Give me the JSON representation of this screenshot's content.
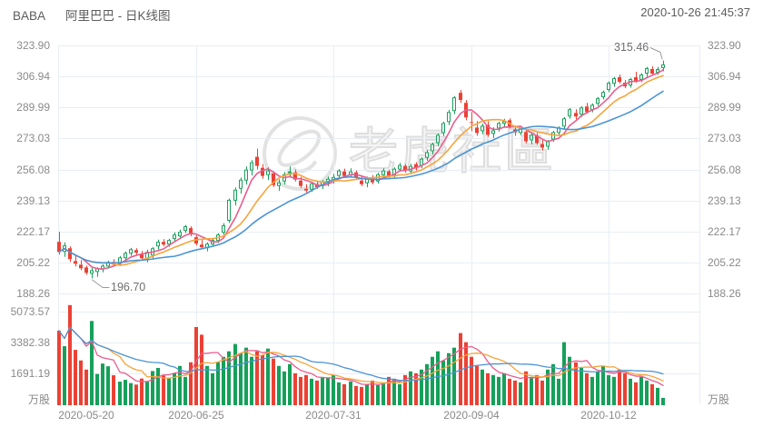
{
  "header": {
    "symbol": "BABA",
    "title": "阿里巴巴 - 日K线图",
    "timestamp": "2020-10-26 21:45:37"
  },
  "watermark": {
    "text": "老虎社區"
  },
  "colors": {
    "up": "#16a05a",
    "up_fill": "#ffffff",
    "down": "#eb4135",
    "ma_fast": "#e85d8e",
    "ma_mid": "#f7a43c",
    "ma_slow": "#4b94d5",
    "grid": "#e8eef5",
    "axis_text": "#8a8a8a",
    "annotation_line": "#9a9a9a",
    "watermark_gray": "#e2e2e2"
  },
  "chart_data": {
    "type": "candlestick",
    "title": "BABA 阿里巴巴 - 日K线图",
    "price_axis": {
      "ticks": [
        "323.90",
        "306.94",
        "289.99",
        "273.03",
        "256.08",
        "239.13",
        "222.17",
        "205.22",
        "188.26"
      ],
      "max": 323.9,
      "min": 188.26
    },
    "volume_axis": {
      "ticks": [
        "5073.57",
        "3382.38",
        "1691.19"
      ],
      "tick_step": 1691.19,
      "unit": "万股"
    },
    "x_ticks": [
      {
        "label": "2020-05-20",
        "index": 0
      },
      {
        "label": "2020-06-25",
        "index": 25
      },
      {
        "label": "2020-07-31",
        "index": 50
      },
      {
        "label": "2020-09-04",
        "index": 75
      },
      {
        "label": "2020-10-12",
        "index": 100
      }
    ],
    "annotations": [
      {
        "text": "196.70",
        "index": 6,
        "anchor": "low"
      },
      {
        "text": "315.46",
        "index": 110,
        "anchor": "high"
      }
    ],
    "ma_periods": [
      5,
      10,
      20
    ],
    "legend": "none",
    "grid": true,
    "columns": [
      "date",
      "open",
      "high",
      "low",
      "close",
      "volume_wan"
    ],
    "candles": [
      [
        "2020-05-20",
        216.5,
        222.0,
        209.5,
        211.0,
        4030
      ],
      [
        "2020-05-21",
        211.0,
        216.0,
        208.5,
        214.5,
        3180
      ],
      [
        "2020-05-22",
        213.0,
        214.0,
        205.5,
        207.0,
        5430
      ],
      [
        "2020-05-26",
        206.0,
        209.5,
        203.0,
        204.5,
        2980
      ],
      [
        "2020-05-27",
        204.0,
        206.5,
        201.0,
        202.0,
        2400
      ],
      [
        "2020-05-28",
        202.5,
        203.5,
        198.5,
        199.5,
        1900
      ],
      [
        "2020-05-29",
        199.0,
        202.0,
        196.7,
        201.0,
        4560
      ],
      [
        "2020-06-01",
        200.0,
        202.5,
        197.5,
        202.0,
        1660
      ],
      [
        "2020-06-02",
        201.5,
        204.0,
        200.0,
        203.5,
        2230
      ],
      [
        "2020-06-03",
        203.0,
        206.0,
        202.0,
        205.5,
        2080
      ],
      [
        "2020-06-04",
        205.5,
        207.0,
        203.5,
        204.0,
        1590
      ],
      [
        "2020-06-05",
        204.5,
        208.5,
        203.5,
        208.0,
        1240
      ],
      [
        "2020-06-08",
        207.5,
        211.0,
        206.5,
        210.5,
        1340
      ],
      [
        "2020-06-09",
        210.0,
        213.0,
        209.0,
        212.5,
        1160
      ],
      [
        "2020-06-10",
        212.0,
        213.0,
        209.5,
        210.5,
        1080
      ],
      [
        "2020-06-11",
        210.0,
        211.5,
        206.5,
        207.5,
        1410
      ],
      [
        "2020-06-12",
        207.0,
        212.0,
        205.5,
        211.0,
        1240
      ],
      [
        "2020-06-15",
        209.0,
        213.5,
        207.5,
        213.0,
        1820
      ],
      [
        "2020-06-16",
        214.0,
        217.5,
        212.5,
        216.5,
        1990
      ],
      [
        "2020-06-17",
        216.5,
        218.0,
        214.0,
        215.0,
        1570
      ],
      [
        "2020-06-18",
        215.0,
        218.0,
        214.0,
        217.5,
        1450
      ],
      [
        "2020-06-19",
        218.0,
        221.5,
        217.0,
        220.5,
        1700
      ],
      [
        "2020-06-22",
        219.5,
        223.0,
        218.5,
        222.0,
        2100
      ],
      [
        "2020-06-23",
        222.5,
        225.5,
        221.5,
        225.0,
        1500
      ],
      [
        "2020-06-24",
        224.0,
        225.0,
        219.5,
        220.5,
        2300
      ],
      [
        "2020-06-25",
        219.0,
        220.0,
        214.5,
        215.5,
        4230
      ],
      [
        "2020-06-26",
        215.0,
        217.5,
        212.5,
        213.5,
        3810
      ],
      [
        "2020-06-29",
        213.0,
        216.0,
        211.5,
        215.5,
        2100
      ],
      [
        "2020-06-30",
        215.0,
        218.0,
        214.0,
        217.5,
        1700
      ],
      [
        "2020-07-01",
        217.0,
        221.0,
        216.0,
        220.5,
        2300
      ],
      [
        "2020-07-02",
        221.5,
        226.5,
        220.5,
        225.5,
        2600
      ],
      [
        "2020-07-06",
        228.0,
        240.0,
        227.0,
        239.5,
        2900
      ],
      [
        "2020-07-07",
        239.0,
        246.0,
        236.5,
        245.0,
        3300
      ],
      [
        "2020-07-08",
        245.5,
        251.5,
        243.0,
        250.5,
        2800
      ],
      [
        "2020-07-09",
        250.0,
        257.5,
        248.0,
        256.0,
        3100
      ],
      [
        "2020-07-10",
        255.5,
        261.0,
        253.0,
        260.0,
        2600
      ],
      [
        "2020-07-13",
        263.0,
        267.5,
        256.0,
        258.0,
        2900
      ],
      [
        "2020-07-14",
        257.0,
        259.0,
        251.0,
        252.5,
        2700
      ],
      [
        "2020-07-15",
        253.0,
        257.0,
        250.5,
        255.5,
        3050
      ],
      [
        "2020-07-16",
        254.0,
        255.0,
        246.5,
        247.5,
        2500
      ],
      [
        "2020-07-17",
        247.0,
        250.5,
        244.5,
        249.0,
        2100
      ],
      [
        "2020-07-20",
        249.5,
        254.5,
        248.0,
        253.5,
        1800
      ],
      [
        "2020-07-21",
        254.0,
        257.5,
        252.0,
        255.0,
        2200
      ],
      [
        "2020-07-22",
        254.5,
        256.0,
        249.5,
        250.5,
        1700
      ],
      [
        "2020-07-23",
        250.0,
        252.0,
        246.0,
        247.0,
        1500
      ],
      [
        "2020-07-24",
        245.5,
        248.0,
        243.5,
        244.5,
        1600
      ],
      [
        "2020-07-27",
        245.0,
        249.0,
        244.0,
        248.5,
        1400
      ],
      [
        "2020-07-28",
        248.0,
        249.5,
        245.5,
        246.5,
        1300
      ],
      [
        "2020-07-29",
        247.0,
        250.0,
        245.5,
        249.5,
        1500
      ],
      [
        "2020-07-30",
        248.5,
        252.0,
        247.0,
        251.0,
        1450
      ],
      [
        "2020-07-31",
        250.0,
        253.5,
        248.5,
        252.0,
        1600
      ],
      [
        "2020-08-03",
        252.5,
        256.0,
        251.0,
        255.5,
        1200
      ],
      [
        "2020-08-04",
        255.0,
        256.5,
        251.5,
        252.5,
        1100
      ],
      [
        "2020-08-05",
        253.0,
        256.5,
        252.0,
        255.0,
        1250
      ],
      [
        "2020-08-06",
        254.5,
        255.5,
        250.5,
        251.5,
        1000
      ],
      [
        "2020-08-07",
        250.0,
        252.5,
        247.0,
        248.0,
        950
      ],
      [
        "2020-08-10",
        248.5,
        252.0,
        246.5,
        251.0,
        1100
      ],
      [
        "2020-08-11",
        251.5,
        253.0,
        248.0,
        249.0,
        1300
      ],
      [
        "2020-08-12",
        249.5,
        254.0,
        248.5,
        253.5,
        1050
      ],
      [
        "2020-08-13",
        253.0,
        256.5,
        252.0,
        255.5,
        1200
      ],
      [
        "2020-08-14",
        255.0,
        256.0,
        251.5,
        252.5,
        1500
      ],
      [
        "2020-08-17",
        253.0,
        257.0,
        252.0,
        256.5,
        1400
      ],
      [
        "2020-08-18",
        256.0,
        259.5,
        255.0,
        258.5,
        1100
      ],
      [
        "2020-08-19",
        258.0,
        259.0,
        254.5,
        255.5,
        1600
      ],
      [
        "2020-08-20",
        255.0,
        259.0,
        254.0,
        258.0,
        1800
      ],
      [
        "2020-08-21",
        259.0,
        260.0,
        255.5,
        257.0,
        1700
      ],
      [
        "2020-08-24",
        258.0,
        262.5,
        257.0,
        262.0,
        1900
      ],
      [
        "2020-08-25",
        262.5,
        266.5,
        261.0,
        265.5,
        2200
      ],
      [
        "2020-08-26",
        266.0,
        270.5,
        264.5,
        270.0,
        2600
      ],
      [
        "2020-08-27",
        270.5,
        275.5,
        269.0,
        275.0,
        2900
      ],
      [
        "2020-08-28",
        276.0,
        282.0,
        274.5,
        281.5,
        2400
      ],
      [
        "2020-08-31",
        282.0,
        288.5,
        280.5,
        287.5,
        2800
      ],
      [
        "2020-09-01",
        288.0,
        296.0,
        286.5,
        295.5,
        3100
      ],
      [
        "2020-09-02",
        298.0,
        299.5,
        292.5,
        294.0,
        3900
      ],
      [
        "2020-09-03",
        292.5,
        294.0,
        283.0,
        284.5,
        3400
      ],
      [
        "2020-09-04",
        282.0,
        287.5,
        277.0,
        281.5,
        2600
      ],
      [
        "2020-09-08",
        279.0,
        282.5,
        274.5,
        276.0,
        2100
      ],
      [
        "2020-09-09",
        277.0,
        281.0,
        275.5,
        280.0,
        1900
      ],
      [
        "2020-09-10",
        280.5,
        282.5,
        274.0,
        275.0,
        1700
      ],
      [
        "2020-09-11",
        275.5,
        279.0,
        273.5,
        277.5,
        1600
      ],
      [
        "2020-09-14",
        278.5,
        282.0,
        277.0,
        281.5,
        1500
      ],
      [
        "2020-09-15",
        281.0,
        283.5,
        279.5,
        282.5,
        1700
      ],
      [
        "2020-09-16",
        283.0,
        284.0,
        278.5,
        279.5,
        1400
      ],
      [
        "2020-09-17",
        278.0,
        280.0,
        274.5,
        276.5,
        1300
      ],
      [
        "2020-09-18",
        276.0,
        279.5,
        275.0,
        278.5,
        1200
      ],
      [
        "2020-09-21",
        276.5,
        277.5,
        270.5,
        271.5,
        1800
      ],
      [
        "2020-09-22",
        272.0,
        275.5,
        270.0,
        275.0,
        1500
      ],
      [
        "2020-09-23",
        274.5,
        276.0,
        269.5,
        270.5,
        1600
      ],
      [
        "2020-09-24",
        270.0,
        272.5,
        266.5,
        268.0,
        1300
      ],
      [
        "2020-09-25",
        268.5,
        272.0,
        267.0,
        271.5,
        1900
      ],
      [
        "2020-09-28",
        272.5,
        277.0,
        271.5,
        276.5,
        2200
      ],
      [
        "2020-09-29",
        276.0,
        279.5,
        275.0,
        279.0,
        1400
      ],
      [
        "2020-09-30",
        279.5,
        284.5,
        278.5,
        284.0,
        3400
      ],
      [
        "2020-10-01",
        285.0,
        289.5,
        284.0,
        289.0,
        2600
      ],
      [
        "2020-10-02",
        287.0,
        289.0,
        283.5,
        285.0,
        2300
      ],
      [
        "2020-10-05",
        286.0,
        290.5,
        285.0,
        290.0,
        2000
      ],
      [
        "2020-10-06",
        290.5,
        292.5,
        286.5,
        287.5,
        1700
      ],
      [
        "2020-10-07",
        288.5,
        292.0,
        287.5,
        291.5,
        1500
      ],
      [
        "2020-10-08",
        292.0,
        295.5,
        291.0,
        295.0,
        1800
      ],
      [
        "2020-10-09",
        295.5,
        299.0,
        294.5,
        298.5,
        2100
      ],
      [
        "2020-10-12",
        299.5,
        304.0,
        298.5,
        303.5,
        1600
      ],
      [
        "2020-10-13",
        303.0,
        306.5,
        301.5,
        306.0,
        1500
      ],
      [
        "2020-10-14",
        306.5,
        308.0,
        303.0,
        304.0,
        1900
      ],
      [
        "2020-10-15",
        303.5,
        305.0,
        300.5,
        301.5,
        1700
      ],
      [
        "2020-10-16",
        302.0,
        306.0,
        301.0,
        305.5,
        1400
      ],
      [
        "2020-10-19",
        306.5,
        309.5,
        303.5,
        304.5,
        1200
      ],
      [
        "2020-10-20",
        305.0,
        308.5,
        304.0,
        308.0,
        1500
      ],
      [
        "2020-10-21",
        308.5,
        312.0,
        307.0,
        311.5,
        1300
      ],
      [
        "2020-10-22",
        311.0,
        312.5,
        307.5,
        308.5,
        1100
      ],
      [
        "2020-10-23",
        309.0,
        312.0,
        308.0,
        311.0,
        900
      ],
      [
        "2020-10-26",
        311.5,
        315.46,
        310.0,
        313.5,
        350
      ]
    ]
  }
}
